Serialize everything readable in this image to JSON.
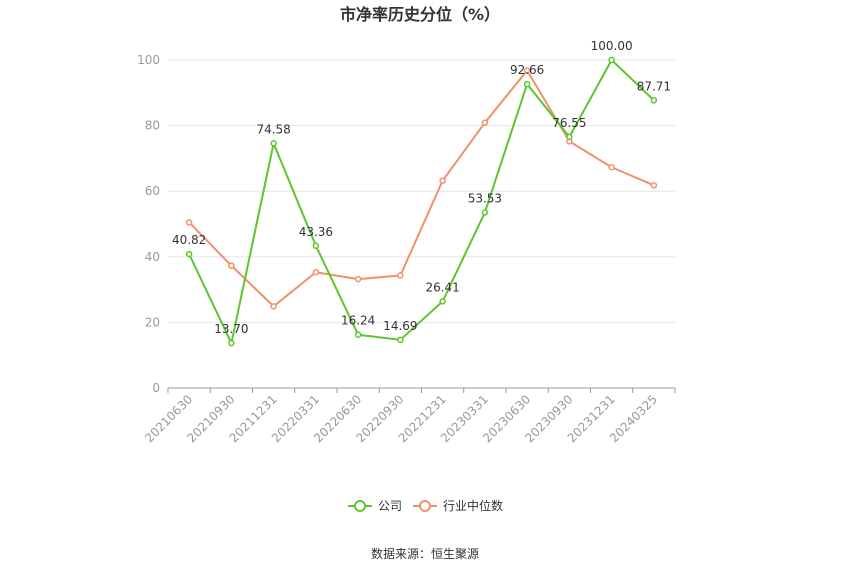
{
  "title": "市净率历史分位（%）",
  "source": "数据来源：恒生聚源",
  "chart_data": {
    "type": "line",
    "title": "市净率历史分位（%）",
    "categories": [
      "20210630",
      "20210930",
      "20211231",
      "20220331",
      "20220630",
      "20220930",
      "20221231",
      "20230331",
      "20230630",
      "20230930",
      "20231231",
      "20240325"
    ],
    "ylim": [
      0,
      100
    ],
    "yticks": [
      0,
      20,
      40,
      60,
      80,
      100
    ],
    "grid": true,
    "legend_position": "bottom-center",
    "series": [
      {
        "name": "公司",
        "color": "#5cc62c",
        "values": [
          40.82,
          13.7,
          74.58,
          43.36,
          16.24,
          14.69,
          26.41,
          53.53,
          92.66,
          76.55,
          100.0,
          87.71
        ],
        "labels": [
          "40.82",
          "13.70",
          "74.58",
          "43.36",
          "16.24",
          "14.69",
          "26.41",
          "53.53",
          "92.66",
          "76.55",
          "100.00",
          "87.71"
        ]
      },
      {
        "name": "行业中位数",
        "color": "#f0916a",
        "values": [
          50.5,
          37.3,
          24.9,
          35.3,
          33.2,
          34.3,
          63.2,
          80.9,
          96.8,
          75.2,
          67.3,
          61.8
        ]
      }
    ]
  }
}
